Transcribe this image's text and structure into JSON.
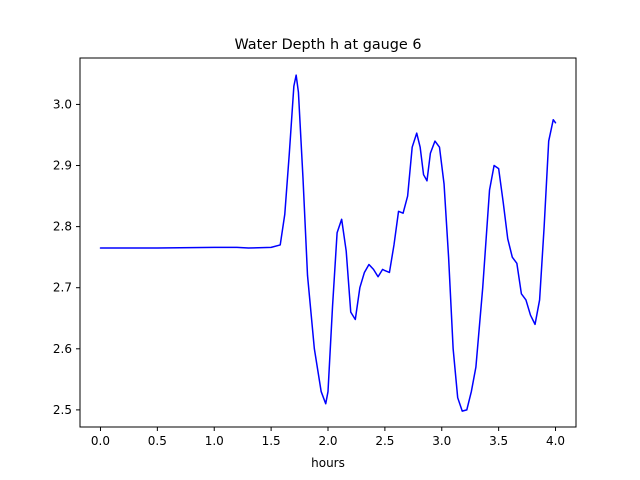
{
  "chart_data": {
    "type": "line",
    "title": "Water Depth h at gauge 6",
    "xlabel": "hours",
    "ylabel": "",
    "xlim": [
      -0.18,
      4.18
    ],
    "ylim": [
      2.472,
      3.076
    ],
    "grid": false,
    "x_ticks": [
      0.0,
      0.5,
      1.0,
      1.5,
      2.0,
      2.5,
      3.0,
      3.5,
      4.0
    ],
    "x_tick_labels": [
      "0.0",
      "0.5",
      "1.0",
      "1.5",
      "2.0",
      "2.5",
      "3.0",
      "3.5",
      "4.0"
    ],
    "y_ticks": [
      2.5,
      2.6,
      2.7,
      2.8,
      2.9,
      3.0
    ],
    "y_tick_labels": [
      "2.5",
      "2.6",
      "2.7",
      "2.8",
      "2.9",
      "3.0"
    ],
    "series": [
      {
        "color": "#0000ff",
        "x": [
          0.0,
          0.5,
          1.0,
          1.2,
          1.3,
          1.5,
          1.58,
          1.62,
          1.66,
          1.7,
          1.72,
          1.74,
          1.78,
          1.82,
          1.88,
          1.94,
          1.98,
          2.0,
          2.04,
          2.08,
          2.12,
          2.16,
          2.2,
          2.24,
          2.28,
          2.32,
          2.36,
          2.4,
          2.44,
          2.48,
          2.5,
          2.54,
          2.58,
          2.62,
          2.66,
          2.7,
          2.74,
          2.78,
          2.81,
          2.84,
          2.87,
          2.9,
          2.94,
          2.98,
          3.02,
          3.06,
          3.1,
          3.14,
          3.18,
          3.22,
          3.26,
          3.3,
          3.36,
          3.42,
          3.46,
          3.5,
          3.54,
          3.58,
          3.62,
          3.66,
          3.7,
          3.74,
          3.78,
          3.82,
          3.86,
          3.9,
          3.94,
          3.98,
          4.0
        ],
        "y": [
          2.765,
          2.765,
          2.766,
          2.766,
          2.765,
          2.766,
          2.77,
          2.82,
          2.92,
          3.03,
          3.048,
          3.02,
          2.88,
          2.72,
          2.6,
          2.53,
          2.51,
          2.53,
          2.67,
          2.79,
          2.812,
          2.76,
          2.66,
          2.648,
          2.7,
          2.725,
          2.738,
          2.73,
          2.718,
          2.73,
          2.728,
          2.725,
          2.77,
          2.825,
          2.822,
          2.85,
          2.93,
          2.953,
          2.93,
          2.885,
          2.875,
          2.92,
          2.94,
          2.93,
          2.87,
          2.75,
          2.6,
          2.52,
          2.498,
          2.5,
          2.53,
          2.57,
          2.7,
          2.86,
          2.9,
          2.895,
          2.84,
          2.78,
          2.75,
          2.74,
          2.69,
          2.68,
          2.655,
          2.64,
          2.68,
          2.8,
          2.94,
          2.975,
          2.97
        ]
      }
    ]
  }
}
